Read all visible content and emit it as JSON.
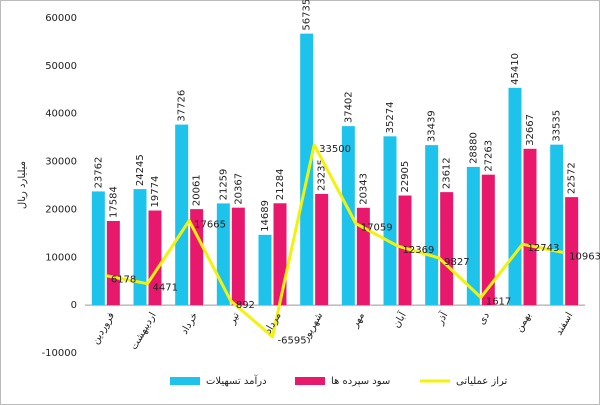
{
  "chart_data": {
    "type": "bar-line",
    "y_label": "میلیارد ریال",
    "categories": [
      "فروردین",
      "اردیبهشت",
      "خرداد",
      "تیر",
      "مرداد",
      "شهریور",
      "مهر",
      "آبان",
      "آذر",
      "دی",
      "بهمن",
      "اسفند"
    ],
    "series": [
      {
        "name": "درآمد تسهیلات",
        "type": "bar",
        "color": "#1ec3ec",
        "values": [
          23762,
          24245,
          37726,
          21259,
          14689,
          56735,
          37402,
          35274,
          33439,
          28880,
          45410,
          33535
        ]
      },
      {
        "name": "سود سپرده ها",
        "type": "bar",
        "color": "#e8186d",
        "values": [
          17584,
          19774,
          20061,
          20367,
          21284,
          23235,
          20343,
          22905,
          23612,
          27263,
          32667,
          22572
        ]
      },
      {
        "name": "تراز عملیاتی",
        "type": "line",
        "color": "#f2f20a",
        "values": [
          6178,
          4471,
          17665,
          892,
          -6595,
          33500,
          17059,
          12369,
          9827,
          1617,
          12743,
          10963
        ]
      }
    ],
    "ylim": [
      -10000,
      60000
    ],
    "yticks": [
      -10000,
      0,
      10000,
      20000,
      30000,
      40000,
      50000,
      60000
    ],
    "grid": false
  }
}
